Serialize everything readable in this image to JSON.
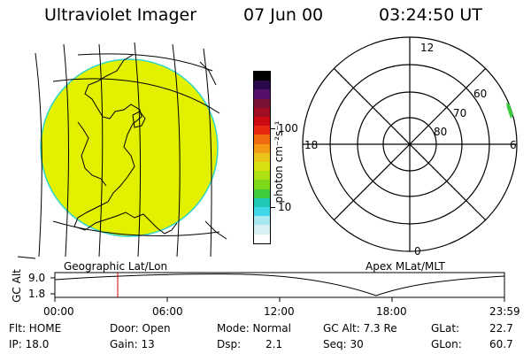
{
  "header": {
    "title": "Ultraviolet Imager",
    "date": "07 Jun 00",
    "time": "03:24:50 UT"
  },
  "colors": {
    "globe_fill": "#e3f000",
    "globe_rim": "#2fd6c8",
    "aurora_patch": "#3bc93b"
  },
  "geo_map": {
    "label": "Geographic Lat/Lon"
  },
  "colorbar": {
    "unit_label": "photon cm⁻²s⁻¹",
    "tick_100": "100",
    "tick_10": "10",
    "colors": [
      "#000000",
      "#2a0a4a",
      "#55106a",
      "#7a1238",
      "#a00e22",
      "#cc0a14",
      "#e82810",
      "#f06a10",
      "#f49a14",
      "#eac418",
      "#d8e014",
      "#aee014",
      "#7cd818",
      "#3ccc3c",
      "#1ec8b4",
      "#40d8e8",
      "#a8e8f0",
      "#d8f0f4",
      "#ffffff"
    ]
  },
  "polar_plot": {
    "label": "Apex MLat/MLT",
    "mlt_top": "12",
    "mlt_left": "18",
    "mlt_right": "6",
    "mlt_bottom": "0",
    "lat_60": "60",
    "lat_70": "70",
    "lat_80": "80"
  },
  "altitude_panel": {
    "ylabel": "GC Alt",
    "ytick_top": "9.0",
    "ytick_bottom": "1.8",
    "xticks": [
      "00:00",
      "06:00",
      "12:00",
      "18:00",
      "23:59"
    ]
  },
  "info": {
    "flt": "Flt: HOME",
    "ip": "IP: 18.0",
    "door": "Door: Open",
    "gain": "Gain: 13",
    "mode": "Mode: Normal",
    "dsp_label": "Dsp:",
    "dsp_value": "2.1",
    "gc_alt": "GC Alt: 7.3 Re",
    "seq": "Seq: 30",
    "glat_label": "GLat:",
    "glat_value": "22.7",
    "glon_label": "GLon:",
    "glon_value": "60.7"
  }
}
